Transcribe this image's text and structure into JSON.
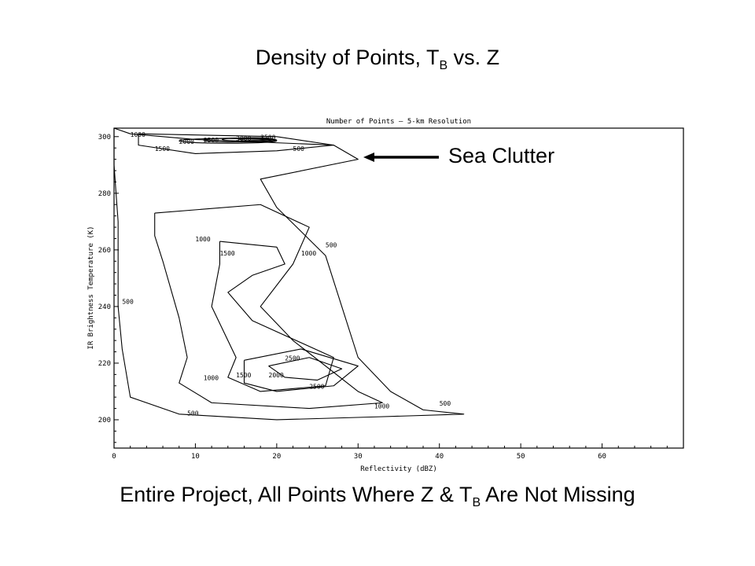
{
  "slide": {
    "title_main": "Density of Points, T",
    "title_sub": "B",
    "title_end": " vs. Z",
    "caption_main": "Entire Project, All Points Where Z & T",
    "caption_sub": "B",
    "caption_end": " Are Not Missing",
    "callout": "Sea Clutter"
  },
  "chart_data": {
    "type": "contour",
    "title": "Number of Points – 5-km Resolution",
    "xlabel": "Reflectivity (dBZ)",
    "ylabel": "IR Brightness Temperature (K)",
    "xlim": [
      0,
      70
    ],
    "ylim": [
      190,
      303
    ],
    "xticks": [
      0,
      10,
      20,
      30,
      40,
      50,
      60
    ],
    "yticks": [
      200,
      220,
      240,
      260,
      280,
      300
    ],
    "contours": [
      {
        "level": 500,
        "label": "500",
        "points": [
          [
            0,
            303
          ],
          [
            0,
            290
          ],
          [
            0.5,
            270
          ],
          [
            0.5,
            240
          ],
          [
            1,
            225
          ],
          [
            2,
            208
          ],
          [
            8,
            202
          ],
          [
            20,
            200
          ],
          [
            32,
            201
          ],
          [
            43,
            202
          ],
          [
            38,
            203.5
          ],
          [
            34,
            210
          ],
          [
            30,
            222
          ],
          [
            28,
            240
          ],
          [
            26,
            258
          ],
          [
            20,
            275
          ],
          [
            18,
            285
          ],
          [
            30,
            292
          ],
          [
            27,
            297
          ],
          [
            10,
            299
          ],
          [
            2,
            301
          ],
          [
            0,
            303
          ]
        ],
        "labels": [
          {
            "x": 9,
            "y": 201.5,
            "text": "500"
          },
          {
            "x": 40,
            "y": 205,
            "text": "500"
          },
          {
            "x": 26,
            "y": 261,
            "text": "500"
          },
          {
            "x": 22,
            "y": 295,
            "text": "500"
          },
          {
            "x": 1,
            "y": 241,
            "text": "500"
          }
        ]
      },
      {
        "level": 1000,
        "label": "1000",
        "points": [
          [
            5,
            273
          ],
          [
            18,
            276
          ],
          [
            24,
            268
          ],
          [
            22,
            255
          ],
          [
            18,
            240
          ],
          [
            22,
            228
          ],
          [
            30,
            210
          ],
          [
            33,
            206
          ],
          [
            24,
            204
          ],
          [
            12,
            206
          ],
          [
            8,
            213
          ],
          [
            9,
            222
          ],
          [
            8,
            236
          ],
          [
            6,
            256
          ],
          [
            5,
            265
          ],
          [
            5,
            273
          ]
        ],
        "labels": [
          {
            "x": 10,
            "y": 263,
            "text": "1000"
          },
          {
            "x": 23,
            "y": 258,
            "text": "1000"
          },
          {
            "x": 11,
            "y": 214,
            "text": "1000"
          },
          {
            "x": 32,
            "y": 204,
            "text": "1000"
          }
        ]
      },
      {
        "level": 1500,
        "label": "1500",
        "points": [
          [
            13,
            263
          ],
          [
            20,
            261
          ],
          [
            21,
            255
          ],
          [
            17,
            251
          ],
          [
            14,
            245
          ],
          [
            17,
            235
          ],
          [
            27,
            222
          ],
          [
            26,
            212
          ],
          [
            18,
            210
          ],
          [
            14,
            215
          ],
          [
            15,
            222
          ],
          [
            12,
            240
          ],
          [
            13,
            255
          ],
          [
            13,
            263
          ]
        ],
        "labels": [
          {
            "x": 13,
            "y": 258,
            "text": "1500"
          },
          {
            "x": 15,
            "y": 215,
            "text": "1500"
          }
        ]
      },
      {
        "level": 2000,
        "label": "2000",
        "points": [
          [
            16,
            221
          ],
          [
            23,
            225
          ],
          [
            30,
            219
          ],
          [
            27,
            212
          ],
          [
            20,
            210
          ],
          [
            16,
            213
          ],
          [
            16,
            221
          ]
        ],
        "labels": [
          {
            "x": 19,
            "y": 215,
            "text": "2000"
          }
        ]
      },
      {
        "level": 2500,
        "label": "2500",
        "points": [
          [
            19,
            219
          ],
          [
            24,
            222
          ],
          [
            28,
            218
          ],
          [
            25,
            214
          ],
          [
            21,
            215
          ],
          [
            19,
            219
          ]
        ],
        "labels": [
          {
            "x": 21,
            "y": 221,
            "text": "2500"
          },
          {
            "x": 24,
            "y": 211,
            "text": "2500"
          }
        ]
      },
      {
        "level": 1000,
        "label": "1000",
        "points": [
          [
            3,
            301
          ],
          [
            20,
            300
          ],
          [
            27,
            297
          ],
          [
            20,
            295
          ],
          [
            10,
            294
          ],
          [
            3,
            297
          ],
          [
            3,
            301
          ]
        ],
        "labels": [
          {
            "x": 2,
            "y": 300,
            "text": "1000"
          },
          {
            "x": 5,
            "y": 295,
            "text": "1500"
          },
          {
            "x": 8,
            "y": 297.5,
            "text": "2000"
          },
          {
            "x": 11,
            "y": 298,
            "text": "2500"
          },
          {
            "x": 15,
            "y": 298.5,
            "text": "3000"
          },
          {
            "x": 18,
            "y": 299,
            "text": "3500"
          }
        ]
      }
    ]
  }
}
